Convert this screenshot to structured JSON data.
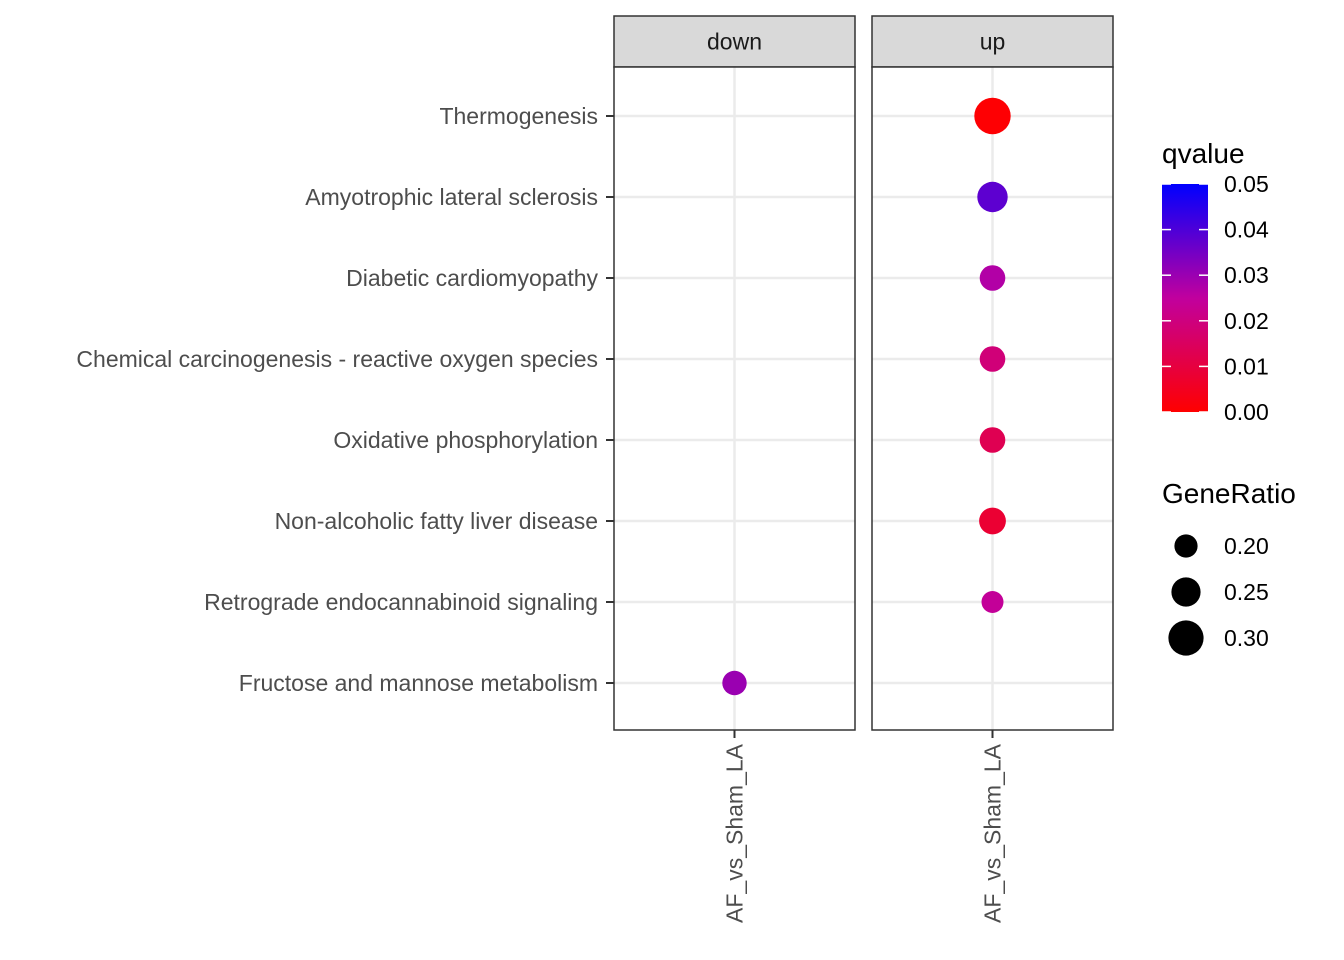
{
  "chart_data": {
    "type": "scatter",
    "facets": [
      "down",
      "up"
    ],
    "x_categories": [
      "AF_vs_Sham_LA"
    ],
    "y_categories": [
      "Thermogenesis",
      "Amyotrophic lateral sclerosis",
      "Diabetic cardiomyopathy",
      "Chemical carcinogenesis - reactive oxygen species",
      "Oxidative phosphorylation",
      "Non-alcoholic fatty liver disease",
      "Retrograde endocannabinoid signaling",
      "Fructose and mannose metabolism"
    ],
    "points": [
      {
        "facet": "down",
        "x": "AF_vs_Sham_LA",
        "y": "Fructose and mannose metabolism",
        "qvalue": 0.03,
        "gene_ratio": 0.21
      },
      {
        "facet": "up",
        "x": "AF_vs_Sham_LA",
        "y": "Thermogenesis",
        "qvalue": 0.0005,
        "gene_ratio": 0.31
      },
      {
        "facet": "up",
        "x": "AF_vs_Sham_LA",
        "y": "Amyotrophic lateral sclerosis",
        "qvalue": 0.038,
        "gene_ratio": 0.26
      },
      {
        "facet": "up",
        "x": "AF_vs_Sham_LA",
        "y": "Diabetic cardiomyopathy",
        "qvalue": 0.027,
        "gene_ratio": 0.22
      },
      {
        "facet": "up",
        "x": "AF_vs_Sham_LA",
        "y": "Chemical carcinogenesis - reactive oxygen species",
        "qvalue": 0.019,
        "gene_ratio": 0.22
      },
      {
        "facet": "up",
        "x": "AF_vs_Sham_LA",
        "y": "Oxidative phosphorylation",
        "qvalue": 0.013,
        "gene_ratio": 0.22
      },
      {
        "facet": "up",
        "x": "AF_vs_Sham_LA",
        "y": "Non-alcoholic fatty liver disease",
        "qvalue": 0.008,
        "gene_ratio": 0.23
      },
      {
        "facet": "up",
        "x": "AF_vs_Sham_LA",
        "y": "Retrograde endocannabinoid signaling",
        "qvalue": 0.024,
        "gene_ratio": 0.19
      }
    ],
    "color_legend": {
      "title": "qvalue",
      "ticks": [
        "0.05",
        "0.04",
        "0.03",
        "0.02",
        "0.01",
        "0.00"
      ],
      "range": [
        0,
        0.05
      ],
      "low_color": "#ff0000",
      "high_color": "#0000ff"
    },
    "size_legend": {
      "title": "GeneRatio",
      "ticks": [
        {
          "label": "0.20",
          "value": 0.2
        },
        {
          "label": "0.25",
          "value": 0.25
        },
        {
          "label": "0.30",
          "value": 0.3
        }
      ]
    },
    "grid": true,
    "legend_position": "right"
  }
}
